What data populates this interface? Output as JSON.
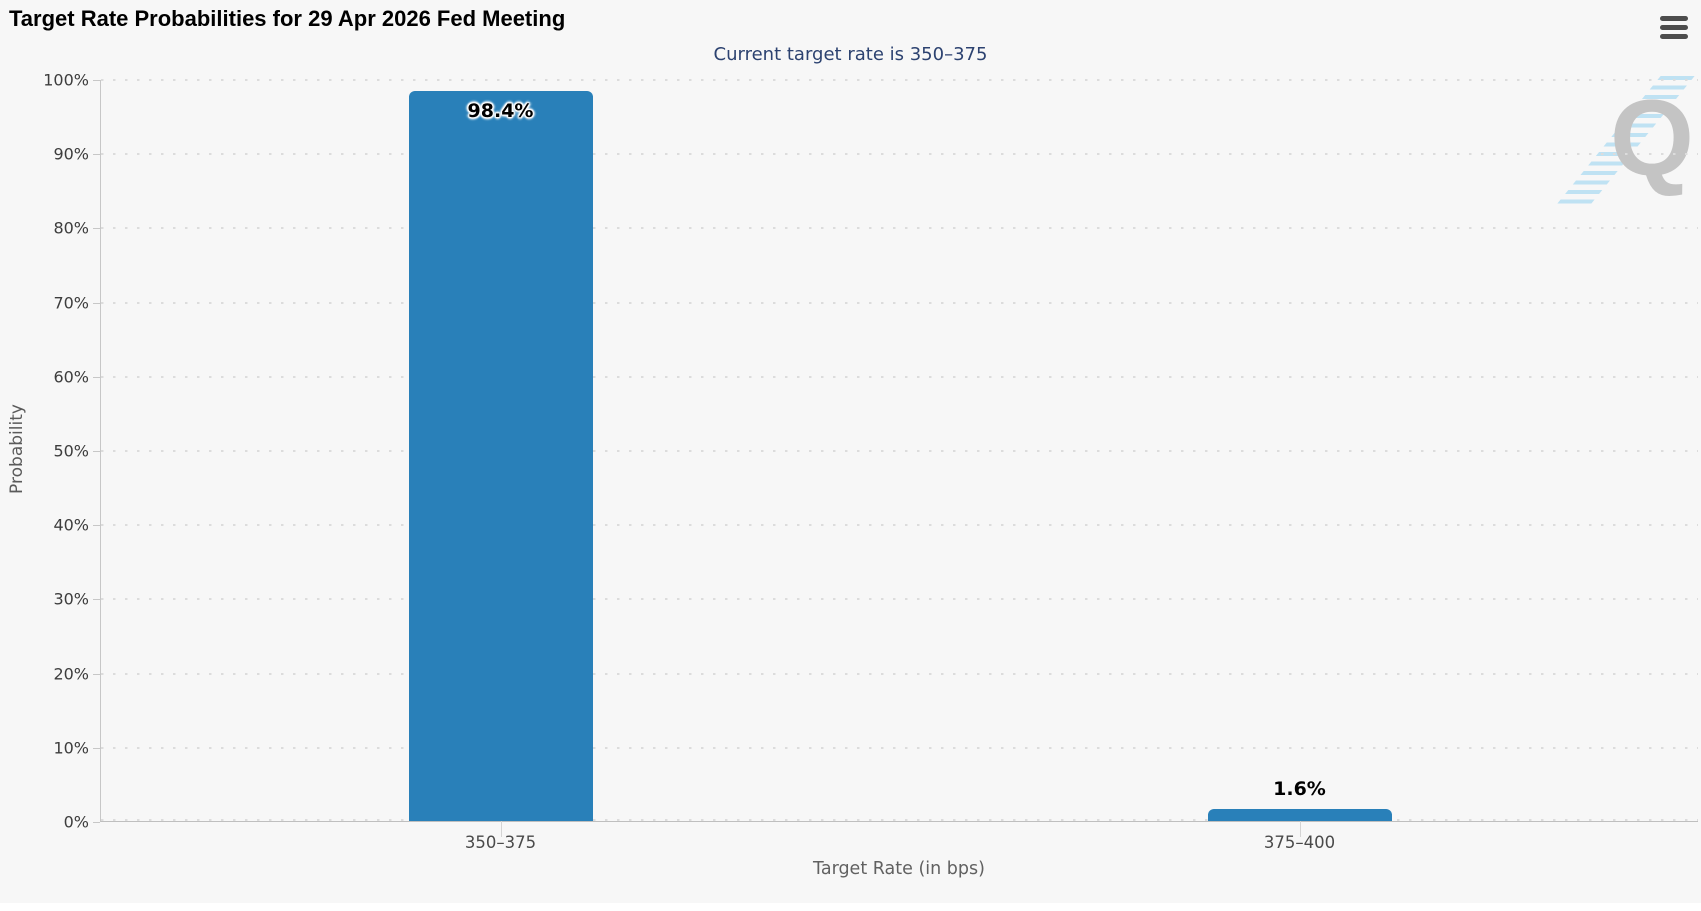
{
  "header": {
    "title": "Target Rate Probabilities for 29 Apr 2026 Fed Meeting",
    "subtitle": "Current target rate is 350–375"
  },
  "menu": {
    "icon": "hamburger-icon",
    "tooltip": "Chart context menu"
  },
  "watermark": {
    "letter": "Q",
    "icon": "quikstrike-logo-icon"
  },
  "chart_data": {
    "type": "bar",
    "title": "Target Rate Probabilities for 29 Apr 2026 Fed Meeting",
    "subtitle": "Current target rate is 350–375",
    "categories": [
      "350–375",
      "375–400"
    ],
    "values": [
      98.4,
      1.6
    ],
    "value_labels": [
      "98.4%",
      "1.6%"
    ],
    "xlabel": "Target Rate (in bps)",
    "ylabel": "Probability",
    "ylim": [
      0,
      100
    ],
    "ytick_step": 10,
    "ytick_labels": [
      "0%",
      "10%",
      "20%",
      "30%",
      "40%",
      "50%",
      "60%",
      "70%",
      "80%",
      "90%",
      "100%"
    ],
    "grid": "dotted-horizontal",
    "legend": "none",
    "bar_color": "#2980b9"
  },
  "colors": {
    "background": "#f7f7f7",
    "page_below": "#ffffff",
    "bar": "#2980b9",
    "title_text": "#000000",
    "subtitle_text": "#2c4270",
    "axis_line": "#c7c7c7",
    "grid_dots": "#dcdcdc",
    "tick_text": "#3d3d3d",
    "axis_title_text": "#616161",
    "menu_icon": "#4d4d4d",
    "watermark_q": "#c4c4c4",
    "watermark_stripes": "#b5def2"
  }
}
